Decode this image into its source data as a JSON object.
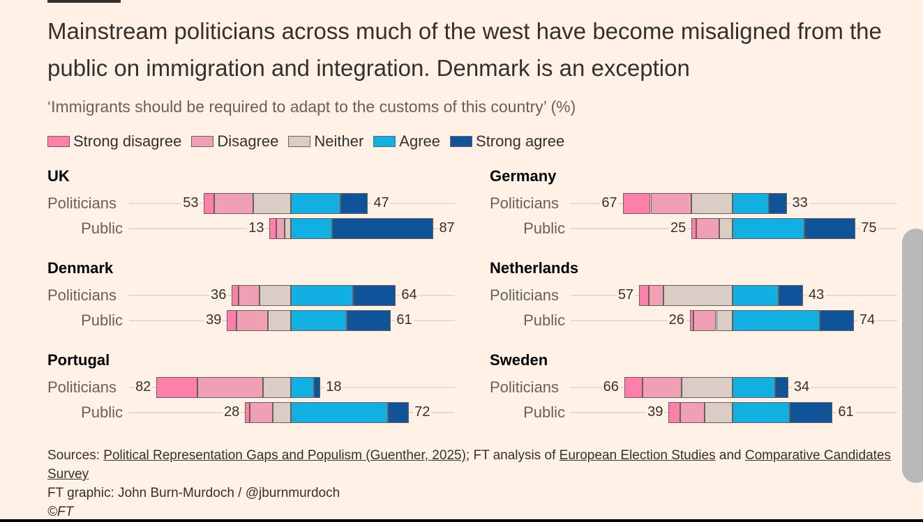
{
  "title": "Mainstream politicians across much of the west have become misaligned from the public on immigration and integration. Denmark is an exception",
  "subtitle": "‘Immigrants should be required to adapt to the customs of this country’ (%)",
  "chart_data": {
    "type": "bar",
    "title": "‘Immigrants should be required to adapt to the customs of this country’ (%)",
    "legend": [
      {
        "label": "Strong disagree",
        "color": "#ff7fab"
      },
      {
        "label": "Disagree",
        "color": "#f0a0b4"
      },
      {
        "label": "Neither",
        "color": "#d9cdc5"
      },
      {
        "label": "Agree",
        "color": "#12afe3"
      },
      {
        "label": "Strong agree",
        "color": "#0f5499"
      }
    ],
    "countries": [
      {
        "name": "UK",
        "rows": [
          {
            "label": "Politicians",
            "left_total": 53,
            "right_total": 47,
            "values": [
              6,
              24,
              23,
              30,
              17
            ]
          },
          {
            "label": "Public",
            "left_total": 13,
            "right_total": 87,
            "values": [
              4,
              5,
              4,
              25,
              62
            ]
          }
        ]
      },
      {
        "name": "Germany",
        "rows": [
          {
            "label": "Politicians",
            "left_total": 67,
            "right_total": 33,
            "values": [
              17,
              25,
              25,
              22,
              11
            ]
          },
          {
            "label": "Public",
            "left_total": 25,
            "right_total": 75,
            "values": [
              3,
              14,
              8,
              44,
              31
            ]
          }
        ]
      },
      {
        "name": "Denmark",
        "rows": [
          {
            "label": "Politicians",
            "left_total": 36,
            "right_total": 64,
            "values": [
              4,
              13,
              19,
              38,
              26
            ]
          },
          {
            "label": "Public",
            "left_total": 39,
            "right_total": 61,
            "values": [
              6,
              19,
              14,
              34,
              27
            ]
          }
        ]
      },
      {
        "name": "Netherlands",
        "rows": [
          {
            "label": "Politicians",
            "left_total": 57,
            "right_total": 43,
            "values": [
              6,
              9,
              42,
              28,
              15
            ]
          },
          {
            "label": "Public",
            "left_total": 26,
            "right_total": 74,
            "values": [
              2,
              14,
              10,
              53,
              21
            ]
          }
        ]
      },
      {
        "name": "Portugal",
        "rows": [
          {
            "label": "Politicians",
            "left_total": 82,
            "right_total": 18,
            "values": [
              25,
              40,
              17,
              14,
              4
            ]
          },
          {
            "label": "Public",
            "left_total": 28,
            "right_total": 72,
            "values": [
              3,
              14,
              11,
              59,
              13
            ]
          }
        ]
      },
      {
        "name": "Sweden",
        "rows": [
          {
            "label": "Politicians",
            "left_total": 66,
            "right_total": 34,
            "values": [
              11,
              24,
              31,
              26,
              8
            ]
          },
          {
            "label": "Public",
            "left_total": 39,
            "right_total": 61,
            "values": [
              7,
              15,
              17,
              35,
              26
            ]
          }
        ]
      }
    ]
  },
  "footer": {
    "sources_prefix": "Sources: ",
    "link1": "Political Representation Gaps and Populism (Guenther, 2025)",
    "mid": "; FT analysis of ",
    "link2": "European Election Studies",
    "and": " and ",
    "link3": "Comparative Candidates Survey",
    "credit": "FT graphic: John Burn-Murdoch / @jburnmurdoch",
    "copyright": "©FT"
  }
}
